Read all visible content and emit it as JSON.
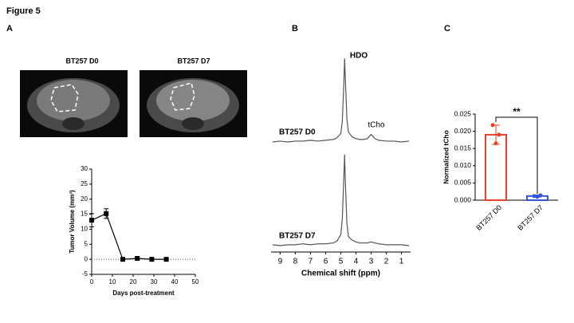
{
  "figure_title": "Figure 5",
  "panel_labels": [
    "A",
    "B",
    "C"
  ],
  "image_labels": [
    "BT257 D0",
    "BT257 D7"
  ],
  "chart_data": [
    {
      "type": "line",
      "ylabel": "Tumor Volume (mm³)",
      "xlabel": "Days post-treatment",
      "x": [
        0,
        7,
        15,
        22,
        29,
        36
      ],
      "values": [
        13,
        15.2,
        0,
        0.3,
        0,
        0
      ],
      "errors": [
        2.2,
        1.6,
        0,
        0,
        0,
        0
      ],
      "color": "#000000",
      "xlim": [
        0,
        50
      ],
      "ylim": [
        -5,
        30
      ],
      "xticks": [
        0,
        10,
        20,
        30,
        40,
        50
      ],
      "yticks": [
        -5,
        0,
        5,
        10,
        15,
        20,
        25,
        30
      ],
      "reference_line": 0
    },
    {
      "type": "spectrum",
      "annotations": [
        "HDO",
        "tCho"
      ],
      "x": [
        9.5,
        9,
        8.5,
        8,
        7.5,
        7,
        6.5,
        6,
        5.5,
        5.25,
        5,
        4.9,
        4.8,
        4.75,
        4.7,
        4.6,
        4.5,
        4.25,
        4,
        3.75,
        3.5,
        3.25,
        3,
        2.75,
        2.5,
        2,
        1.5,
        1,
        0.5
      ],
      "series": [
        {
          "name": "BT257 D0",
          "color": "#555555",
          "values": [
            0,
            1,
            0,
            1,
            1,
            2,
            1,
            2,
            3,
            5,
            10,
            25,
            70,
            100,
            75,
            28,
            12,
            6,
            4,
            3,
            3,
            4,
            9,
            4,
            2,
            1,
            1,
            0,
            1
          ]
        }
      ],
      "xlim": [
        9.6,
        0.4
      ],
      "ylim": [
        0,
        105
      ]
    },
    {
      "type": "spectrum",
      "xlabel": "Chemical shift (ppm)",
      "x": [
        9.5,
        9,
        8.5,
        8,
        7.5,
        7,
        6.5,
        6,
        5.5,
        5.25,
        5,
        4.9,
        4.8,
        4.75,
        4.7,
        4.6,
        4.5,
        4.25,
        4,
        3.75,
        3.5,
        3.25,
        3,
        2.75,
        2.5,
        2,
        1.5,
        1,
        0.5
      ],
      "series": [
        {
          "name": "BT257 D7",
          "color": "#555555",
          "values": [
            1,
            0,
            1,
            1,
            2,
            1,
            2,
            2,
            3,
            5,
            12,
            30,
            75,
            100,
            70,
            25,
            10,
            6,
            4,
            3,
            3,
            3,
            4,
            3,
            2,
            1,
            1,
            1,
            0
          ]
        }
      ],
      "xlim": [
        9.6,
        0.4
      ],
      "ylim": [
        0,
        105
      ],
      "xticks": [
        9,
        8,
        7,
        6,
        5,
        4,
        3,
        2,
        1
      ]
    },
    {
      "type": "bar",
      "ylabel": "Normalized tCho",
      "categories": [
        "BT257 D0",
        "BT257 D7"
      ],
      "values": [
        0.019,
        0.0012
      ],
      "errors": [
        0.0028,
        0.0003
      ],
      "points": [
        [
          0.0218,
          0.019,
          0.0165
        ],
        [
          0.0012,
          0.0014,
          0.001
        ]
      ],
      "colors": [
        "#e8412c",
        "#3355dd"
      ],
      "ylim": [
        0,
        0.025
      ],
      "yticks": [
        {
          "value": 0,
          "label": "0.000"
        },
        {
          "value": 0.005,
          "label": "0.005"
        },
        {
          "value": 0.01,
          "label": "0.010"
        },
        {
          "value": 0.015,
          "label": "0.015"
        },
        {
          "value": 0.02,
          "label": "0.020"
        },
        {
          "value": 0.025,
          "label": "0.025"
        }
      ],
      "significance": "**"
    }
  ]
}
